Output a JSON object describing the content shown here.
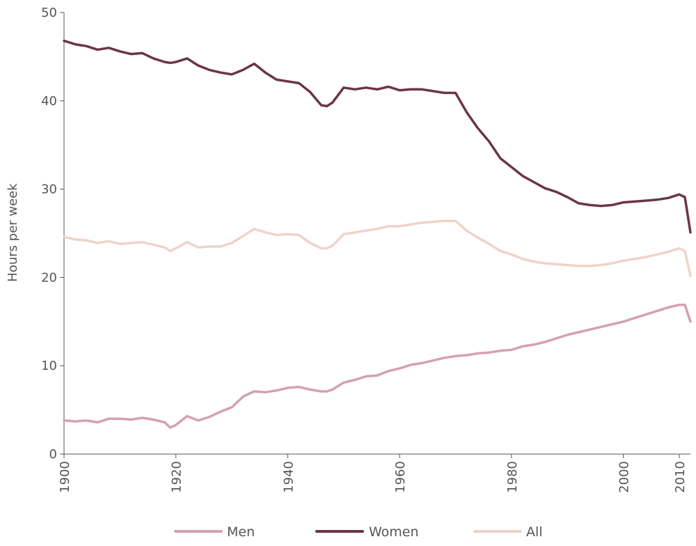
{
  "chart_data": {
    "type": "line",
    "title": "",
    "xlabel": "",
    "ylabel": "Hours per week",
    "xlim": [
      1900,
      2012
    ],
    "ylim": [
      0,
      50
    ],
    "x_ticks": [
      1900,
      1920,
      1940,
      1960,
      1980,
      2000,
      2010
    ],
    "y_ticks": [
      0,
      10,
      20,
      30,
      40,
      50
    ],
    "grid": false,
    "legend_position": "bottom",
    "x": [
      1900,
      1902,
      1904,
      1906,
      1908,
      1910,
      1912,
      1914,
      1916,
      1918,
      1919,
      1920,
      1922,
      1924,
      1926,
      1928,
      1930,
      1932,
      1934,
      1936,
      1938,
      1940,
      1942,
      1944,
      1946,
      1947,
      1948,
      1950,
      1952,
      1954,
      1956,
      1958,
      1960,
      1962,
      1964,
      1966,
      1968,
      1970,
      1972,
      1974,
      1976,
      1978,
      1980,
      1982,
      1984,
      1986,
      1988,
      1990,
      1992,
      1994,
      1996,
      1998,
      2000,
      2002,
      2004,
      2006,
      2008,
      2010,
      2011,
      2012
    ],
    "series": [
      {
        "name": "Men",
        "color": "#d4a0b4",
        "values": [
          3.8,
          3.7,
          3.8,
          3.6,
          4.0,
          4.0,
          3.9,
          4.1,
          3.9,
          3.6,
          3.0,
          3.3,
          4.3,
          3.8,
          4.2,
          4.8,
          5.3,
          6.5,
          7.1,
          7.0,
          7.2,
          7.5,
          7.6,
          7.3,
          7.1,
          7.1,
          7.3,
          8.1,
          8.4,
          8.8,
          8.9,
          9.4,
          9.7,
          10.1,
          10.3,
          10.6,
          10.9,
          11.1,
          11.2,
          11.4,
          11.5,
          11.7,
          11.8,
          12.2,
          12.4,
          12.7,
          13.1,
          13.5,
          13.8,
          14.1,
          14.4,
          14.7,
          15.0,
          15.4,
          15.8,
          16.2,
          16.6,
          16.9,
          16.9,
          15.0
        ]
      },
      {
        "name": "Women",
        "color": "#6b3548",
        "values": [
          46.8,
          46.4,
          46.2,
          45.8,
          46.0,
          45.6,
          45.3,
          45.4,
          44.8,
          44.4,
          44.3,
          44.4,
          44.8,
          44.0,
          43.5,
          43.2,
          43.0,
          43.5,
          44.2,
          43.2,
          42.4,
          42.2,
          42.0,
          41.0,
          39.5,
          39.4,
          39.8,
          41.5,
          41.3,
          41.5,
          41.3,
          41.6,
          41.2,
          41.3,
          41.3,
          41.1,
          40.9,
          40.9,
          38.7,
          36.9,
          35.4,
          33.5,
          32.5,
          31.5,
          30.8,
          30.1,
          29.7,
          29.1,
          28.4,
          28.2,
          28.1,
          28.2,
          28.5,
          28.6,
          28.7,
          28.8,
          29.0,
          29.4,
          29.1,
          25.1
        ]
      },
      {
        "name": "All",
        "color": "#efd3c8",
        "values": [
          24.6,
          24.3,
          24.2,
          23.9,
          24.1,
          23.8,
          23.9,
          24.0,
          23.7,
          23.4,
          23.0,
          23.3,
          24.0,
          23.4,
          23.5,
          23.5,
          23.9,
          24.7,
          25.5,
          25.1,
          24.8,
          24.9,
          24.8,
          23.9,
          23.3,
          23.3,
          23.6,
          24.9,
          25.1,
          25.3,
          25.5,
          25.8,
          25.8,
          26.0,
          26.2,
          26.3,
          26.4,
          26.4,
          25.3,
          24.5,
          23.8,
          23.0,
          22.6,
          22.1,
          21.8,
          21.6,
          21.5,
          21.4,
          21.3,
          21.3,
          21.4,
          21.6,
          21.9,
          22.1,
          22.3,
          22.6,
          22.9,
          23.3,
          23.0,
          20.2
        ]
      }
    ]
  }
}
